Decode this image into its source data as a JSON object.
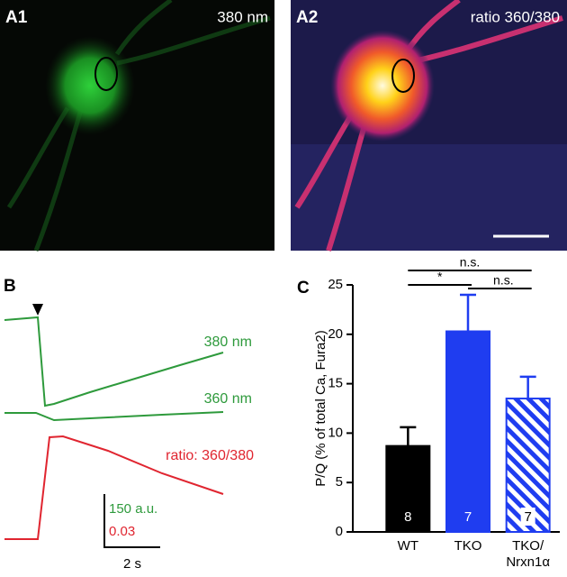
{
  "panel_a1": {
    "label": "A1",
    "caption": "380 nm"
  },
  "panel_a2": {
    "label": "A2",
    "caption": "ratio 360/380"
  },
  "panel_b": {
    "label": "B",
    "traces": [
      {
        "name": "380 nm",
        "color": "#2e9a3c"
      },
      {
        "name": "360 nm",
        "color": "#2e9a3c"
      },
      {
        "name": "ratio: 360/380",
        "color": "#e02530"
      }
    ],
    "scale_labels": [
      "150 a.u.",
      "0.03",
      "2 s"
    ]
  },
  "chart_data": {
    "type": "bar",
    "panel_label": "C",
    "ylabel": "P/Q (% of total Ca, Fura2)",
    "categories": [
      "WT",
      "TKO",
      "TKO/\nNrxn1α"
    ],
    "values": [
      8.7,
      20.3,
      13.5
    ],
    "errors": [
      1.9,
      3.7,
      2.2
    ],
    "n": [
      8,
      7,
      7
    ],
    "colors": [
      "#000000",
      "#1f3df0",
      "#1f3df0"
    ],
    "hatch": [
      false,
      false,
      true
    ],
    "ylim": [
      0,
      25
    ],
    "yticks": [
      0,
      5,
      10,
      15,
      20,
      25
    ],
    "significance": [
      "n.s.",
      "*",
      "n.s."
    ]
  }
}
